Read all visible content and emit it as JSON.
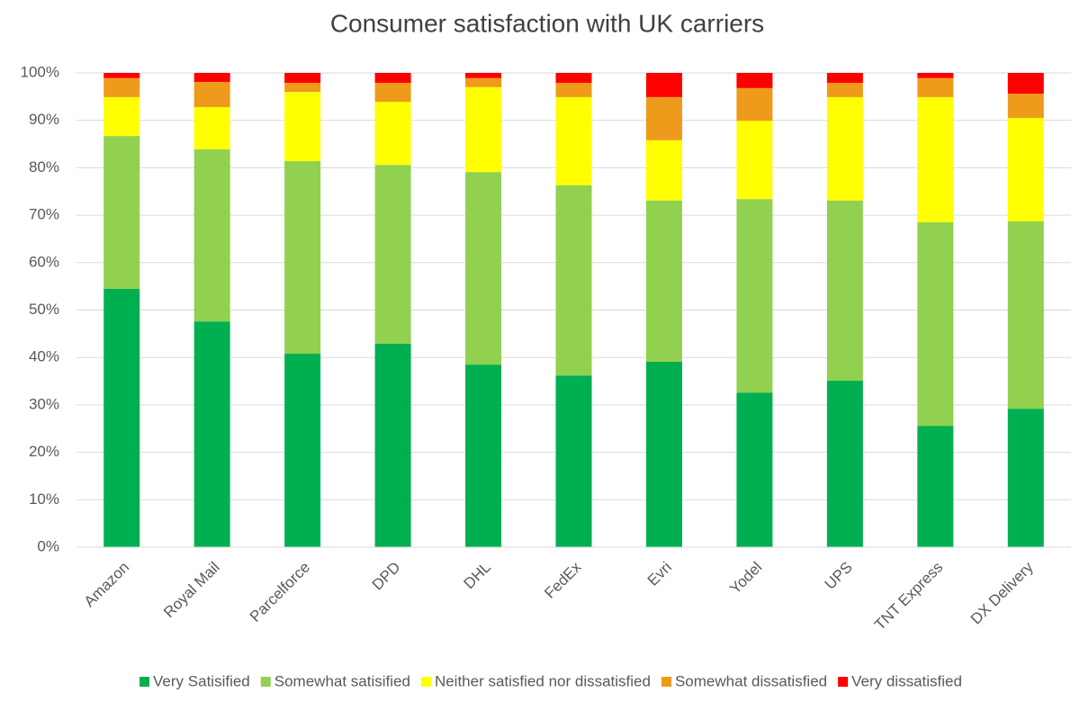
{
  "chart_data": {
    "type": "stacked_bar",
    "title": "Consumer satisfaction with UK carriers",
    "categories": [
      "Amazon",
      "Royal Mail",
      "Parcelforce",
      "DPD",
      "DHL",
      "FedEx",
      "Evri",
      "Yodel",
      "UPS",
      "TNT Express",
      "DX Delivery"
    ],
    "series": [
      {
        "name": "Very Satisified",
        "color": "#00b050",
        "values": [
          54.5,
          47.6,
          40.8,
          42.9,
          38.5,
          36.2,
          39.1,
          32.6,
          35.1,
          25.6,
          29.2
        ]
      },
      {
        "name": "Somewhat satisified",
        "color": "#92d050",
        "values": [
          32.2,
          36.3,
          40.6,
          37.7,
          40.6,
          40.1,
          34.0,
          40.8,
          38.0,
          42.9,
          39.5
        ]
      },
      {
        "name": "Neither satisfied nor dissatisfied",
        "color": "#ffff00",
        "values": [
          8.2,
          8.9,
          14.6,
          13.3,
          17.9,
          18.6,
          12.7,
          16.5,
          21.8,
          26.4,
          21.8
        ]
      },
      {
        "name": "Somewhat dissatisfied",
        "color": "#ee9a1a",
        "values": [
          4.0,
          5.3,
          1.9,
          4.0,
          1.9,
          3.0,
          9.1,
          6.9,
          3.0,
          4.0,
          5.1
        ]
      },
      {
        "name": "Very dissatisfied",
        "color": "#ff0000",
        "values": [
          1.1,
          1.9,
          2.1,
          2.1,
          1.1,
          2.1,
          5.1,
          3.2,
          2.1,
          1.1,
          4.4
        ]
      }
    ],
    "ylim": [
      0,
      100
    ],
    "yticks": [
      {
        "value": 0,
        "label": "0%"
      },
      {
        "value": 10,
        "label": "10%"
      },
      {
        "value": 20,
        "label": "20%"
      },
      {
        "value": 30,
        "label": "30%"
      },
      {
        "value": 40,
        "label": "40%"
      },
      {
        "value": 50,
        "label": "50%"
      },
      {
        "value": 60,
        "label": "60%"
      },
      {
        "value": 70,
        "label": "70%"
      },
      {
        "value": 80,
        "label": "80%"
      },
      {
        "value": 90,
        "label": "90%"
      },
      {
        "value": 100,
        "label": "100%"
      }
    ],
    "grid": true,
    "legend": "bottom"
  }
}
